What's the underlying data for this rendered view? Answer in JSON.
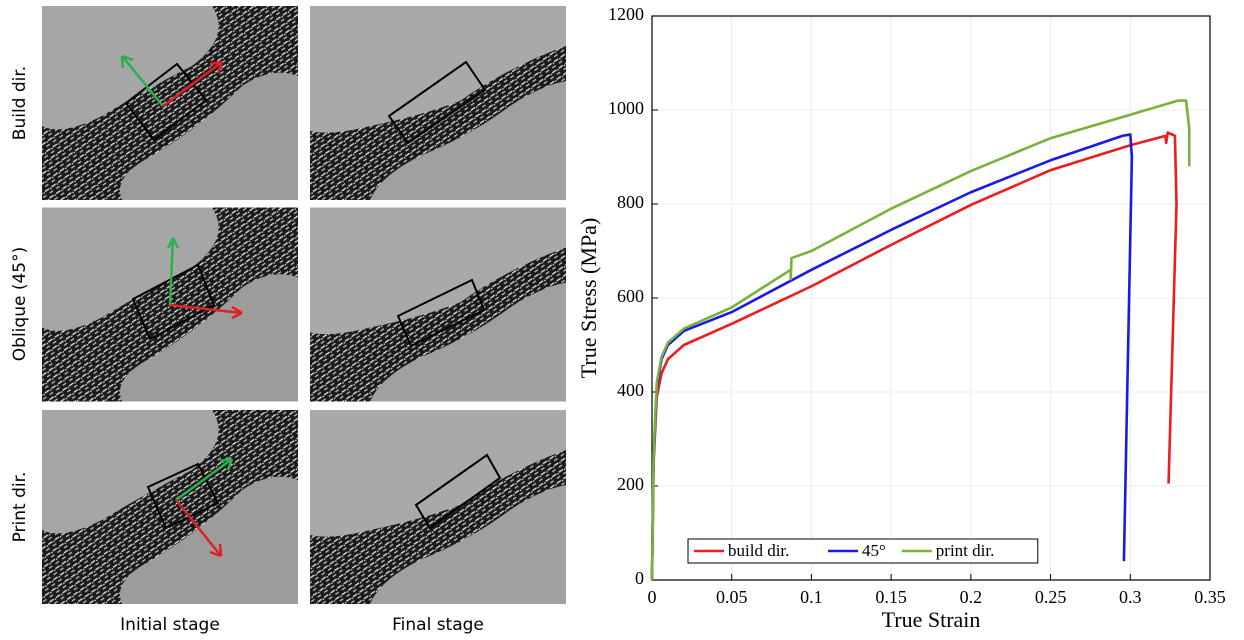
{
  "image_grid": {
    "row_labels": [
      "Build dir.",
      "Oblique (45°)",
      "Print dir."
    ],
    "column_labels": [
      "Initial stage",
      "Final stage"
    ]
  },
  "chart_data": {
    "type": "line",
    "xlabel": "True Strain",
    "ylabel": "True Stress (MPa)",
    "xlim": [
      0,
      0.35
    ],
    "xticks": [
      0,
      0.05,
      0.1,
      0.15,
      0.2,
      0.25,
      0.3,
      0.35
    ],
    "ylim": [
      0,
      1200
    ],
    "yticks": [
      0,
      200,
      400,
      600,
      800,
      1000,
      1200
    ],
    "grid": true,
    "legend": "lower left",
    "series": [
      {
        "name": "build dir.",
        "color": "#ee1c1c",
        "x": [
          0,
          0.001,
          0.003,
          0.006,
          0.01,
          0.02,
          0.05,
          0.1,
          0.15,
          0.2,
          0.25,
          0.3,
          0.322,
          0.3225,
          0.3235,
          0.328,
          0.329,
          0.324
        ],
        "values": [
          0,
          250,
          390,
          440,
          470,
          500,
          545,
          625,
          713,
          798,
          872,
          925,
          945,
          930,
          952,
          945,
          800,
          205
        ]
      },
      {
        "name": "45°",
        "color": "#1a1ae6",
        "x": [
          0,
          0.001,
          0.003,
          0.006,
          0.01,
          0.02,
          0.05,
          0.1,
          0.15,
          0.2,
          0.25,
          0.295,
          0.3,
          0.301,
          0.296
        ],
        "values": [
          0,
          260,
          410,
          470,
          500,
          530,
          570,
          660,
          745,
          825,
          893,
          945,
          948,
          900,
          40
        ]
      },
      {
        "name": "print dir.",
        "color": "#77b23a",
        "x": [
          0,
          0.001,
          0.003,
          0.006,
          0.01,
          0.02,
          0.05,
          0.087,
          0.087,
          0.0875,
          0.1,
          0.15,
          0.2,
          0.25,
          0.3,
          0.33,
          0.335,
          0.337,
          0.337
        ],
        "values": [
          0,
          270,
          420,
          475,
          505,
          535,
          580,
          660,
          640,
          685,
          700,
          790,
          870,
          940,
          990,
          1020,
          1020,
          960,
          880
        ]
      }
    ]
  }
}
